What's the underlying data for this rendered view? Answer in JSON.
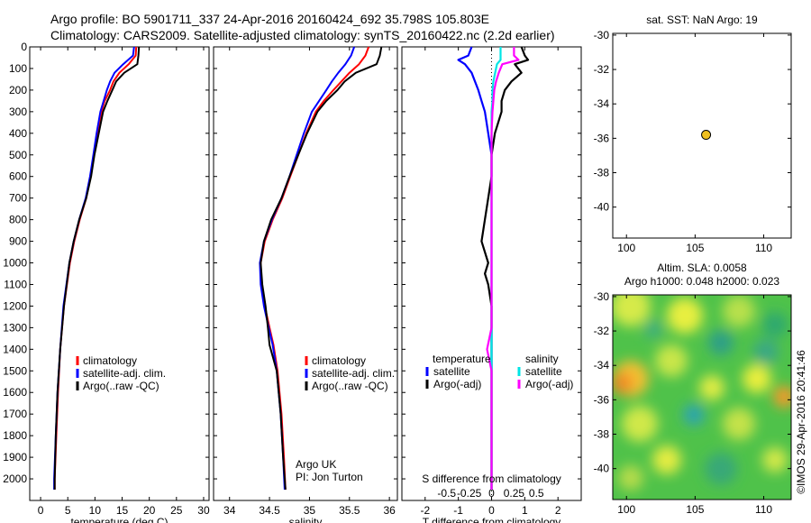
{
  "header": {
    "line1": "Argo profile: BO 5901711_337 24-Apr-2016 20160424_692 35.798S 105.803E",
    "line2": "Climatology: CARS2009. Satellite-adjusted climatology: synTS_20160422.nc (2.2d earlier)"
  },
  "colors": {
    "climatology": "#ff0000",
    "satellite": "#0000ff",
    "argo": "#000000",
    "sat_diff": "#00e5e5",
    "argo_s_diff": "#ff00ff",
    "float_marker": "#f0c020"
  },
  "chart_data": [
    {
      "id": "temperature",
      "type": "line",
      "xlabel": "temperature (deg C)",
      "ylabel": "",
      "xlim": [
        -2,
        31
      ],
      "ylim": [
        2100,
        0
      ],
      "xticks": [
        0,
        5,
        10,
        15,
        20,
        25,
        30
      ],
      "yticks": [
        0,
        100,
        200,
        300,
        400,
        500,
        600,
        700,
        800,
        900,
        1000,
        1100,
        1200,
        1300,
        1400,
        1500,
        1600,
        1700,
        1800,
        1900,
        2000
      ],
      "legend": [
        "climatology",
        "satellite-adj. clim.",
        "Argo(..raw -QC)"
      ],
      "depth": [
        0,
        40,
        80,
        120,
        160,
        200,
        250,
        300,
        400,
        500,
        600,
        700,
        800,
        900,
        1000,
        1200,
        1400,
        1600,
        1800,
        2000,
        2050
      ],
      "series": [
        {
          "name": "climatology",
          "values": [
            17.6,
            17.5,
            16.2,
            14.5,
            13.4,
            12.8,
            11.8,
            11.2,
            10.4,
            9.8,
            9.2,
            8.4,
            7.2,
            6.2,
            5.4,
            4.3,
            3.6,
            3.2,
            2.9,
            2.6,
            2.6
          ]
        },
        {
          "name": "satellite-adj. clim.",
          "values": [
            17.2,
            17.0,
            15.2,
            13.6,
            12.8,
            12.2,
            11.6,
            11.0,
            10.3,
            9.7,
            9.1,
            8.3,
            7.1,
            6.1,
            5.3,
            4.2,
            3.6,
            3.1,
            2.8,
            2.5,
            2.5
          ]
        },
        {
          "name": "Argo(..raw -QC)",
          "values": [
            18.1,
            18.0,
            17.8,
            15.4,
            13.9,
            13.2,
            12.3,
            11.5,
            10.7,
            9.9,
            9.3,
            8.4,
            7.1,
            6.1,
            5.3,
            4.3,
            3.6,
            3.1,
            2.8,
            2.6,
            2.6
          ]
        }
      ]
    },
    {
      "id": "salinity",
      "type": "line",
      "xlabel": "salinity",
      "ylabel": "",
      "xlim": [
        33.8,
        36.1
      ],
      "ylim": [
        2100,
        0
      ],
      "xticks": [
        34,
        34.5,
        35,
        35.5,
        36
      ],
      "legend": [
        "climatology",
        "satellite-adj. clim.",
        "Argo(..raw -QC)"
      ],
      "depth": [
        0,
        40,
        80,
        120,
        160,
        200,
        250,
        300,
        400,
        500,
        600,
        700,
        800,
        900,
        1000,
        1100,
        1200,
        1300,
        1380,
        1500,
        1700,
        1900,
        2050
      ],
      "series": [
        {
          "name": "climatology",
          "values": [
            35.74,
            35.7,
            35.62,
            35.5,
            35.4,
            35.3,
            35.18,
            35.08,
            34.96,
            34.86,
            34.76,
            34.66,
            34.54,
            34.44,
            34.39,
            34.4,
            34.44,
            34.5,
            34.55,
            34.6,
            34.65,
            34.68,
            34.7
          ]
        },
        {
          "name": "satellite-adj. clim.",
          "values": [
            35.56,
            35.52,
            35.45,
            35.36,
            35.28,
            35.21,
            35.12,
            35.03,
            34.93,
            34.84,
            34.75,
            34.65,
            34.53,
            34.43,
            34.38,
            34.39,
            34.43,
            34.49,
            34.54,
            34.59,
            34.64,
            34.67,
            34.69
          ]
        },
        {
          "name": "Argo(..raw -QC)",
          "values": [
            35.9,
            35.88,
            35.84,
            35.58,
            35.44,
            35.35,
            35.21,
            35.1,
            34.97,
            34.86,
            34.75,
            34.65,
            34.52,
            34.43,
            34.39,
            34.41,
            34.45,
            34.48,
            34.5,
            34.59,
            34.64,
            34.67,
            34.7
          ]
        }
      ],
      "annotation": [
        "Argo UK",
        "PI: Jon Turton"
      ]
    },
    {
      "id": "differences",
      "type": "line",
      "xlabel": "T difference from climatology",
      "xlabel_top": "S difference from climatology",
      "xlim": [
        -2.7,
        2.7
      ],
      "ylim": [
        2100,
        0
      ],
      "xticks": [
        -2,
        -1,
        0,
        1,
        2
      ],
      "xticklabels": [
        "-2",
        "-1",
        "0",
        "1",
        "2"
      ],
      "sticks": [
        -0.5,
        -0.25,
        0,
        0.25,
        0.5
      ],
      "sticklabels": [
        "-0.5",
        "-0.25",
        "0",
        "0.25",
        "0.5"
      ],
      "legend_headers": [
        "temperature",
        "salinity"
      ],
      "legend": [
        "satellite",
        "Argo(-adj)",
        "satellite",
        "Argo(-adj)"
      ],
      "depth": [
        0,
        40,
        60,
        80,
        120,
        160,
        200,
        250,
        300,
        400,
        500,
        600,
        700,
        800,
        900,
        1000,
        1050,
        1100,
        1200,
        1300,
        1400,
        1500,
        1700,
        1900,
        2050
      ],
      "series": [
        {
          "name": "satellite",
          "values": [
            -0.6,
            -0.7,
            -1.0,
            -0.8,
            -0.6,
            -0.5,
            -0.4,
            -0.3,
            -0.2,
            -0.1,
            0,
            0,
            0,
            0,
            0,
            0,
            0,
            0,
            0,
            0,
            0,
            0,
            0,
            0,
            0
          ]
        },
        {
          "name": "Argo(-adj)",
          "values": [
            0.9,
            1.0,
            1.1,
            0.7,
            0.9,
            0.6,
            0.4,
            0.3,
            0.3,
            0.1,
            0,
            0,
            -0.1,
            -0.2,
            -0.3,
            -0.1,
            -0.2,
            -0.1,
            0,
            0,
            0,
            0,
            0,
            0,
            0
          ]
        },
        {
          "name": "satellite",
          "values": [
            0.1,
            0.1,
            0.1,
            0.06,
            0.04,
            0.02,
            0.01,
            0.01,
            0,
            0,
            0,
            0,
            0,
            0,
            0,
            0,
            0,
            0,
            0,
            0,
            0,
            0,
            0,
            0,
            0
          ]
        },
        {
          "name": "Argo(-adj)",
          "values": [
            0.25,
            0.25,
            0.3,
            0.12,
            0.08,
            0.05,
            0.03,
            0.02,
            0.01,
            0,
            0,
            0,
            0,
            0,
            0,
            0,
            0,
            0,
            0,
            0,
            -0.05,
            0,
            0,
            0,
            0
          ]
        }
      ]
    },
    {
      "id": "position",
      "type": "scatter",
      "title": "sat. SST: NaN Argo: 19",
      "xlim": [
        99,
        112
      ],
      "ylim": [
        -41.8,
        -29.9
      ],
      "xticks": [
        100,
        105,
        110
      ],
      "yticks": [
        -30,
        -32,
        -34,
        -36,
        -38,
        -40
      ],
      "points": [
        {
          "x": 105.8,
          "y": -35.8
        }
      ]
    },
    {
      "id": "sla",
      "type": "heatmap",
      "title": "Altim. SLA: 0.0058",
      "subtitle": "Argo h1000: 0.048 h2000: 0.023",
      "xlim": [
        99,
        112
      ],
      "ylim": [
        -41.8,
        -29.9
      ],
      "xticks": [
        100,
        105,
        110
      ],
      "yticks": [
        -30,
        -32,
        -34,
        -36,
        -38,
        -40
      ]
    }
  ],
  "footer": {
    "credit": "©IMOS 29-Apr-2016 20:41:46"
  }
}
